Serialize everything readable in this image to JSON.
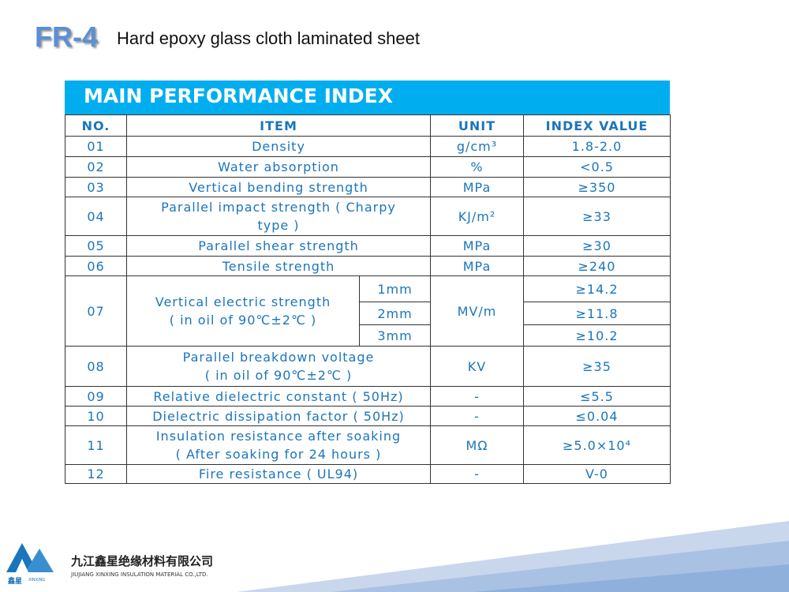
{
  "header": {
    "code": "FR-4",
    "subtitle": "Hard epoxy glass cloth laminated sheet"
  },
  "table": {
    "title": "MAIN PERFORMANCE INDEX",
    "columns": [
      "NO.",
      "ITEM",
      "UNIT",
      "INDEX VALUE"
    ],
    "rows": [
      {
        "no": "01",
        "item": [
          "Density"
        ],
        "unit": "g/cm³",
        "value": [
          "1.8-2.0"
        ]
      },
      {
        "no": "02",
        "item": [
          "Water absorption"
        ],
        "unit": "%",
        "value": [
          "<0.5"
        ]
      },
      {
        "no": "03",
        "item": [
          "Vertical bending strength"
        ],
        "unit": "MPa",
        "value": [
          "≥350"
        ]
      },
      {
        "no": "04",
        "item": [
          "Parallel impact strength ( Charpy",
          "type )"
        ],
        "unit": "KJ/m²",
        "value": [
          "≥33"
        ]
      },
      {
        "no": "05",
        "item": [
          "Parallel shear strength"
        ],
        "unit": "MPa",
        "value": [
          "≥30"
        ]
      },
      {
        "no": "06",
        "item": [
          "Tensile strength"
        ],
        "unit": "MPa",
        "value": [
          "≥240"
        ]
      },
      {
        "no": "07",
        "item": [
          "Vertical electric strength",
          "( in oil of 90℃±2℃ )"
        ],
        "sub": [
          "1mm",
          "2mm",
          "3mm"
        ],
        "unit": "MV/m",
        "value": [
          "≥14.2",
          "≥11.8",
          "≥10.2"
        ]
      },
      {
        "no": "08",
        "item": [
          "Parallel breakdown voltage",
          "( in oil of 90℃±2℃ )"
        ],
        "unit": "KV",
        "value": [
          "≥35"
        ]
      },
      {
        "no": "09",
        "item": [
          "Relative dielectric constant ( 50Hz)"
        ],
        "unit": "-",
        "value": [
          "≤5.5"
        ]
      },
      {
        "no": "10",
        "item": [
          "Dielectric dissipation factor ( 50Hz)"
        ],
        "unit": "-",
        "value": [
          "≤0.04"
        ]
      },
      {
        "no": "11",
        "item": [
          "Insulation resistance after soaking",
          "( After soaking for 24 hours )"
        ],
        "unit": "MΩ",
        "value": [
          "≥5.0×10⁴"
        ]
      },
      {
        "no": "12",
        "item": [
          "Fire resistance ( UL94)"
        ],
        "unit": "-",
        "value": [
          "V-0"
        ]
      }
    ]
  },
  "footer": {
    "company_cn": "九江鑫星绝缘材料有限公司",
    "company_en": "JIUJIANG XINXING INSULATION MATERIAL CO.,LTD.",
    "brand_cn": "鑫星",
    "brand_en": "XINXING"
  }
}
